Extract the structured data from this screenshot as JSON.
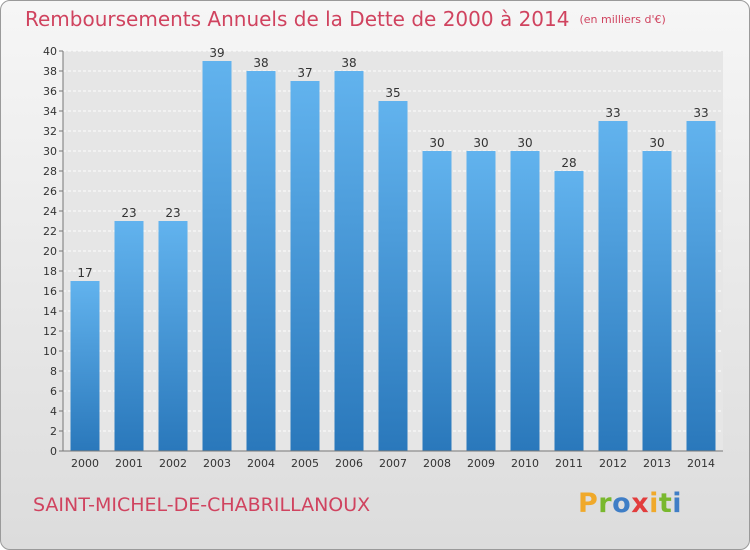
{
  "header": {
    "title": "Remboursements Annuels de la Dette de 2000 à 2014",
    "unit": "(en milliers d'€)"
  },
  "footer": {
    "commune": "SAINT-MICHEL-DE-CHABRILLANOUX",
    "logo_letters": [
      {
        "char": "P",
        "color": "#f0a92a"
      },
      {
        "char": "r",
        "color": "#79b82e"
      },
      {
        "char": "o",
        "color": "#3f7ec6"
      },
      {
        "char": "x",
        "color": "#e23d3d"
      },
      {
        "char": "i",
        "color": "#f0a92a"
      },
      {
        "char": "t",
        "color": "#79b82e"
      },
      {
        "char": "i",
        "color": "#3f7ec6"
      }
    ]
  },
  "chart_data": {
    "type": "bar",
    "title": "Remboursements Annuels de la Dette de 2000 à 2014",
    "subtitle": "(en milliers d'€)",
    "categories": [
      "2000",
      "2001",
      "2002",
      "2003",
      "2004",
      "2005",
      "2006",
      "2007",
      "2008",
      "2009",
      "2010",
      "2011",
      "2012",
      "2013",
      "2014"
    ],
    "values": [
      17,
      23,
      23,
      39,
      38,
      37,
      38,
      35,
      30,
      30,
      30,
      28,
      33,
      30,
      33
    ],
    "ylim": [
      0,
      40
    ],
    "ytick_step": 2,
    "grid": true,
    "bar_color_top": "#62b3ee",
    "bar_color_bottom": "#2a78bb",
    "data_labels": true
  }
}
